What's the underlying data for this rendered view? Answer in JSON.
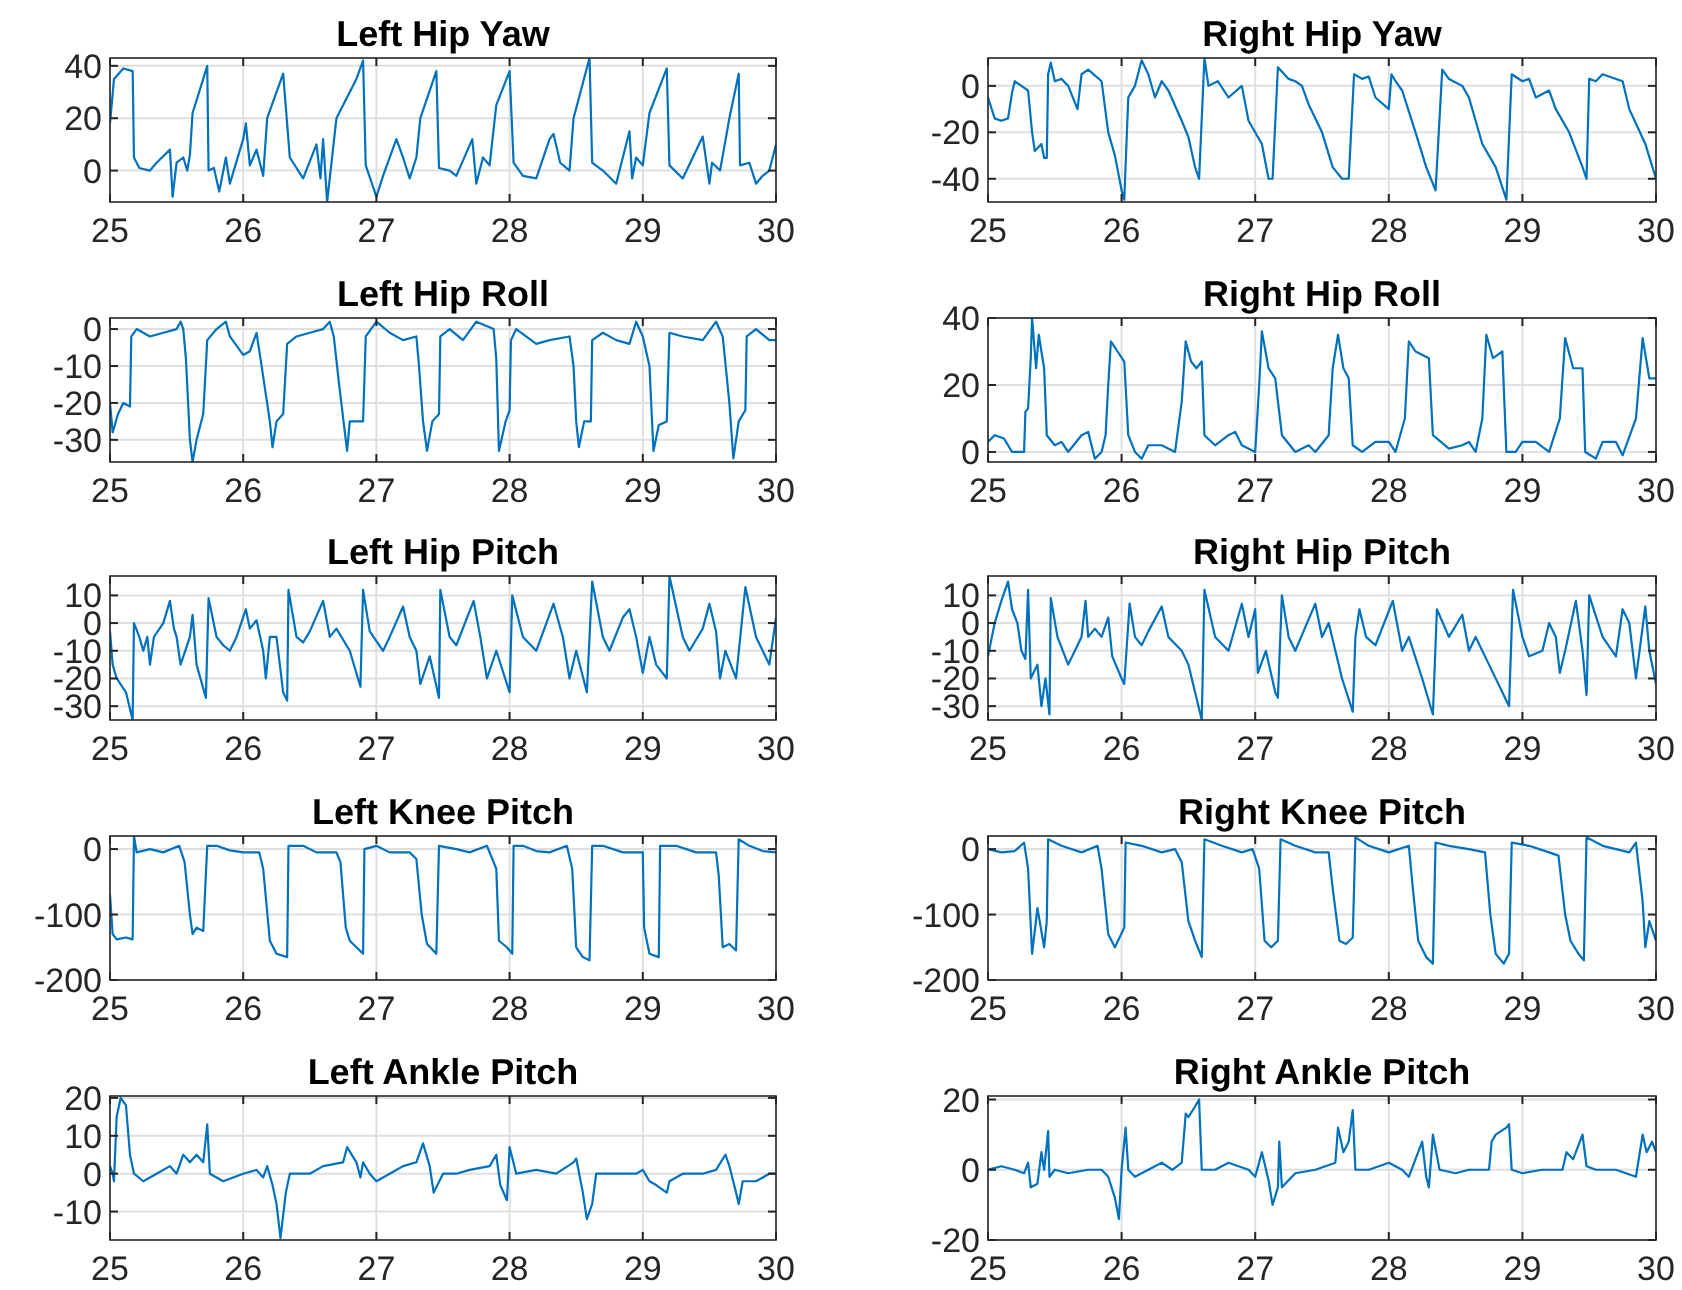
{
  "chart_data": [
    {
      "type": "line",
      "title": "Left Hip Yaw",
      "color": "#0072bd",
      "xlim": [
        25,
        30
      ],
      "xticks": [
        25,
        26,
        27,
        28,
        29,
        30
      ],
      "ylim": [
        -12,
        43
      ],
      "yticks": [
        0,
        20,
        40
      ],
      "grid": true,
      "x": [
        25,
        25.03,
        25.1,
        25.17,
        25.18,
        25.22,
        25.3,
        25.35,
        25.45,
        25.47,
        25.5,
        25.55,
        25.58,
        25.6,
        25.62,
        25.7,
        25.73,
        25.74,
        25.78,
        25.82,
        25.87,
        25.9,
        26.0,
        26.02,
        26.05,
        26.1,
        26.15,
        26.18,
        26.3,
        26.35,
        26.45,
        26.55,
        26.58,
        26.6,
        26.63,
        26.7,
        26.85,
        26.9,
        26.92,
        27.0,
        27.05,
        27.15,
        27.2,
        27.25,
        27.3,
        27.33,
        27.45,
        27.47,
        27.55,
        27.6,
        27.72,
        27.75,
        27.8,
        27.85,
        27.9,
        28.0,
        28.03,
        28.1,
        28.2,
        28.3,
        28.33,
        28.38,
        28.45,
        28.48,
        28.6,
        28.62,
        28.7,
        28.8,
        28.9,
        28.92,
        28.95,
        29.0,
        29.05,
        29.18,
        29.2,
        29.3,
        29.45,
        29.5,
        29.52,
        29.58,
        29.65,
        29.72,
        29.73,
        29.8,
        29.85,
        29.9,
        29.95,
        30
      ],
      "values": [
        18,
        35,
        39,
        38,
        5,
        1,
        0,
        3,
        8,
        -10,
        3,
        5,
        0,
        6,
        22,
        35,
        40,
        0,
        1,
        -8,
        5,
        -5,
        12,
        18,
        2,
        8,
        -2,
        20,
        37,
        5,
        -3,
        10,
        -3,
        12,
        -12,
        20,
        35,
        42,
        2,
        -10,
        -2,
        12,
        5,
        -3,
        5,
        20,
        38,
        1,
        0,
        -2,
        12,
        -5,
        5,
        2,
        25,
        38,
        3,
        -2,
        -3,
        12,
        14,
        3,
        0,
        20,
        43,
        3,
        0,
        -5,
        15,
        -3,
        5,
        2,
        22,
        39,
        2,
        -3,
        13,
        -5,
        3,
        0,
        20,
        37,
        2,
        3,
        -5,
        -2,
        0,
        10
      ]
    },
    {
      "type": "line",
      "title": "Right Hip Yaw",
      "color": "#0072bd",
      "xlim": [
        25,
        30
      ],
      "xticks": [
        25,
        26,
        27,
        28,
        29,
        30
      ],
      "ylim": [
        -50,
        12
      ],
      "yticks": [
        -40,
        -20,
        0
      ],
      "grid": true,
      "x": [
        25,
        25.05,
        25.1,
        25.15,
        25.18,
        25.2,
        25.25,
        25.3,
        25.33,
        25.35,
        25.4,
        25.42,
        25.44,
        25.45,
        25.47,
        25.5,
        25.55,
        25.6,
        25.67,
        25.7,
        25.75,
        25.85,
        25.9,
        25.95,
        26.0,
        26.02,
        26.05,
        26.1,
        26.15,
        26.2,
        26.25,
        26.3,
        26.35,
        26.45,
        26.5,
        26.55,
        26.58,
        26.62,
        26.65,
        26.72,
        26.8,
        26.9,
        26.95,
        27.05,
        27.1,
        27.13,
        27.17,
        27.25,
        27.3,
        27.35,
        27.4,
        27.5,
        27.58,
        27.65,
        27.7,
        27.74,
        27.8,
        27.85,
        27.9,
        28.0,
        28.02,
        28.05,
        28.1,
        28.2,
        28.28,
        28.35,
        28.4,
        28.45,
        28.55,
        28.6,
        28.7,
        28.8,
        28.88,
        28.92,
        29.0,
        29.05,
        29.1,
        29.2,
        29.25,
        29.35,
        29.45,
        29.48,
        29.5,
        29.55,
        29.6,
        29.75,
        29.8,
        29.88,
        29.92,
        30
      ],
      "values": [
        -5,
        -14,
        -15,
        -14,
        -3,
        2,
        0,
        -2,
        -20,
        -28,
        -25,
        -31,
        -31,
        5,
        10,
        2,
        3,
        0,
        -10,
        5,
        7,
        2,
        -20,
        -30,
        -45,
        -49,
        -5,
        0,
        11,
        5,
        -5,
        2,
        -2,
        -15,
        -22,
        -35,
        -40,
        12,
        0,
        2,
        -5,
        0,
        -15,
        -25,
        -40,
        -40,
        8,
        3,
        2,
        0,
        -8,
        -20,
        -35,
        -40,
        -40,
        5,
        3,
        4,
        -5,
        -10,
        5,
        2,
        -2,
        -20,
        -35,
        -45,
        7,
        3,
        0,
        -5,
        -25,
        -35,
        -49,
        5,
        2,
        3,
        -5,
        -2,
        -10,
        -20,
        -35,
        -40,
        3,
        2,
        5,
        2,
        -10,
        -20,
        -25,
        -40
      ]
    },
    {
      "type": "line",
      "title": "Left Hip Roll",
      "color": "#0072bd",
      "xlim": [
        25,
        30
      ],
      "xticks": [
        25,
        26,
        27,
        28,
        29,
        30
      ],
      "ylim": [
        -36,
        3
      ],
      "yticks": [
        -30,
        -20,
        -10,
        0
      ],
      "grid": true,
      "x": [
        25,
        25.02,
        25.06,
        25.1,
        25.15,
        25.16,
        25.2,
        25.3,
        25.4,
        25.5,
        25.53,
        25.55,
        25.57,
        25.6,
        25.62,
        25.65,
        25.7,
        25.73,
        25.8,
        25.87,
        25.9,
        26.0,
        26.05,
        26.08,
        26.1,
        26.13,
        26.2,
        26.22,
        26.25,
        26.3,
        26.33,
        26.4,
        26.5,
        26.6,
        26.65,
        26.68,
        26.72,
        26.78,
        26.8,
        26.9,
        26.92,
        27.0,
        27.1,
        27.2,
        27.3,
        27.32,
        27.35,
        27.38,
        27.42,
        27.47,
        27.48,
        27.55,
        27.65,
        27.75,
        27.88,
        27.9,
        27.92,
        27.97,
        28.0,
        28.01,
        28.05,
        28.2,
        28.3,
        28.45,
        28.48,
        28.5,
        28.52,
        28.56,
        28.61,
        28.62,
        28.7,
        28.8,
        28.9,
        28.95,
        29.0,
        29.05,
        29.08,
        29.12,
        29.18,
        29.2,
        29.3,
        29.45,
        29.55,
        29.6,
        29.65,
        29.68,
        29.72,
        29.77,
        29.78,
        29.85,
        29.95,
        30
      ],
      "values": [
        -20,
        -28,
        -23,
        -20,
        -21,
        -2,
        0,
        -2,
        -1,
        0,
        2,
        0,
        -8,
        -30,
        -36,
        -30,
        -23,
        -3,
        0,
        2,
        -2,
        -7,
        -6,
        -3,
        -1,
        -8,
        -25,
        -32,
        -25,
        -23,
        -4,
        -2,
        -1,
        0,
        2,
        -2,
        -15,
        -33,
        -25,
        -25,
        -2,
        2,
        -1,
        -3,
        -2,
        -10,
        -25,
        -33,
        -25,
        -23,
        -2,
        0,
        -3,
        2,
        0,
        -8,
        -33,
        -25,
        -22,
        -3,
        0,
        -4,
        -3,
        -2,
        -10,
        -25,
        -32,
        -25,
        -25,
        -3,
        -1,
        -3,
        -4,
        2,
        -2,
        -10,
        -33,
        -26,
        -25,
        -1,
        -2,
        -3,
        2,
        -2,
        -20,
        -35,
        -25,
        -22,
        -2,
        0,
        -3,
        -3
      ]
    },
    {
      "type": "line",
      "title": "Right Hip Roll",
      "color": "#0072bd",
      "xlim": [
        25,
        30
      ],
      "xticks": [
        25,
        26,
        27,
        28,
        29,
        30
      ],
      "ylim": [
        -3,
        40
      ],
      "yticks": [
        0,
        20,
        40
      ],
      "grid": true,
      "x": [
        25,
        25.05,
        25.12,
        25.18,
        25.27,
        25.28,
        25.3,
        25.32,
        25.33,
        25.36,
        25.38,
        25.42,
        25.44,
        25.5,
        25.55,
        25.6,
        25.7,
        25.75,
        25.8,
        25.85,
        25.88,
        25.9,
        25.92,
        25.97,
        26.02,
        26.05,
        26.1,
        26.15,
        26.2,
        26.3,
        26.4,
        26.45,
        26.48,
        26.52,
        26.56,
        26.6,
        26.62,
        26.7,
        26.8,
        26.85,
        26.9,
        27.0,
        27.03,
        27.05,
        27.1,
        27.15,
        27.2,
        27.3,
        27.4,
        27.45,
        27.55,
        27.58,
        27.62,
        27.66,
        27.7,
        27.73,
        27.8,
        27.9,
        28.0,
        28.05,
        28.12,
        28.15,
        28.2,
        28.3,
        28.33,
        28.45,
        28.55,
        28.6,
        28.65,
        28.7,
        28.73,
        28.78,
        28.85,
        28.88,
        28.95,
        29.0,
        29.1,
        29.2,
        29.28,
        29.32,
        29.38,
        29.45,
        29.47,
        29.55,
        29.6,
        29.7,
        29.75,
        29.85,
        29.9,
        29.95,
        30
      ],
      "values": [
        3,
        5,
        4,
        0,
        0,
        12,
        13,
        28,
        40,
        25,
        35,
        25,
        5,
        2,
        3,
        0,
        5,
        6,
        -2,
        0,
        5,
        20,
        33,
        30,
        27,
        5,
        0,
        -2,
        2,
        2,
        0,
        15,
        33,
        27,
        25,
        27,
        5,
        2,
        5,
        6,
        2,
        0,
        20,
        36,
        25,
        22,
        5,
        0,
        2,
        0,
        5,
        25,
        35,
        25,
        22,
        2,
        0,
        3,
        3,
        0,
        10,
        33,
        30,
        28,
        5,
        1,
        2,
        3,
        0,
        10,
        35,
        28,
        30,
        0,
        0,
        3,
        3,
        0,
        10,
        34,
        25,
        25,
        0,
        -2,
        3,
        3,
        -1,
        10,
        34,
        22,
        22
      ]
    },
    {
      "type": "line",
      "title": "Left Hip Pitch",
      "color": "#0072bd",
      "xlim": [
        25,
        30
      ],
      "xticks": [
        25,
        26,
        27,
        28,
        29,
        30
      ],
      "ylim": [
        -35,
        17
      ],
      "yticks": [
        -30,
        -20,
        -10,
        0,
        10
      ],
      "grid": true,
      "x": [
        25,
        25.02,
        25.05,
        25.12,
        25.17,
        25.18,
        25.22,
        25.25,
        25.28,
        25.3,
        25.33,
        25.4,
        25.45,
        25.48,
        25.5,
        25.53,
        25.6,
        25.62,
        25.65,
        25.72,
        25.74,
        25.8,
        25.85,
        25.9,
        25.95,
        26.02,
        26.05,
        26.1,
        26.15,
        26.17,
        26.2,
        26.25,
        26.3,
        26.33,
        26.34,
        26.4,
        26.45,
        26.5,
        26.6,
        26.65,
        26.7,
        26.8,
        26.88,
        26.9,
        26.95,
        27.05,
        27.1,
        27.2,
        27.25,
        27.3,
        27.33,
        27.4,
        27.47,
        27.48,
        27.55,
        27.6,
        27.73,
        27.78,
        27.83,
        27.9,
        28.0,
        28.02,
        28.1,
        28.2,
        28.33,
        28.4,
        28.45,
        28.5,
        28.58,
        28.62,
        28.7,
        28.75,
        28.85,
        28.9,
        28.95,
        29.0,
        29.05,
        29.1,
        29.18,
        29.2,
        29.3,
        29.35,
        29.45,
        29.5,
        29.55,
        29.58,
        29.62,
        29.7,
        29.77,
        29.85,
        29.9,
        29.95,
        30
      ],
      "values": [
        -3,
        -15,
        -20,
        -25,
        -35,
        0,
        -5,
        -10,
        -5,
        -15,
        -5,
        0,
        8,
        -2,
        -5,
        -15,
        -5,
        3,
        -15,
        -27,
        9,
        -5,
        -8,
        -10,
        -5,
        5,
        -2,
        1,
        -10,
        -20,
        -5,
        -5,
        -25,
        -28,
        12,
        -5,
        -7,
        -3,
        8,
        -5,
        -2,
        -10,
        -23,
        12,
        -3,
        -10,
        -5,
        6,
        -5,
        -10,
        -22,
        -12,
        -27,
        12,
        -5,
        -8,
        8,
        -5,
        -20,
        -10,
        -25,
        10,
        -5,
        -10,
        7,
        -5,
        -20,
        -10,
        -25,
        15,
        -5,
        -10,
        2,
        5,
        -5,
        -18,
        -5,
        -15,
        -20,
        17,
        -5,
        -10,
        -2,
        7,
        -3,
        -20,
        -10,
        -20,
        13,
        -5,
        -10,
        -15,
        2
      ]
    },
    {
      "type": "line",
      "title": "Right Hip Pitch",
      "color": "#0072bd",
      "xlim": [
        25,
        30
      ],
      "xticks": [
        25,
        26,
        27,
        28,
        29,
        30
      ],
      "ylim": [
        -35,
        17
      ],
      "yticks": [
        -30,
        -20,
        -10,
        0,
        10
      ],
      "grid": true,
      "x": [
        25,
        25.05,
        25.1,
        25.15,
        25.18,
        25.22,
        25.25,
        25.28,
        25.3,
        25.32,
        25.37,
        25.4,
        25.43,
        25.46,
        25.47,
        25.52,
        25.6,
        25.7,
        25.73,
        25.75,
        25.8,
        25.85,
        25.9,
        25.93,
        26.0,
        26.02,
        26.06,
        26.1,
        26.15,
        26.2,
        26.3,
        26.35,
        26.45,
        26.5,
        26.55,
        26.6,
        26.62,
        26.7,
        26.8,
        26.9,
        26.95,
        27.0,
        27.02,
        27.08,
        27.15,
        27.17,
        27.2,
        27.25,
        27.3,
        27.45,
        27.5,
        27.55,
        27.65,
        27.73,
        27.75,
        27.78,
        27.83,
        27.9,
        28.03,
        28.1,
        28.15,
        28.25,
        28.33,
        28.36,
        28.45,
        28.55,
        28.6,
        28.65,
        28.75,
        28.85,
        28.9,
        28.93,
        29.0,
        29.05,
        29.15,
        29.2,
        29.25,
        29.28,
        29.32,
        29.4,
        29.45,
        29.48,
        29.5,
        29.6,
        29.7,
        29.75,
        29.8,
        29.85,
        29.92,
        29.95,
        30
      ],
      "values": [
        -12,
        0,
        8,
        15,
        5,
        0,
        -10,
        -13,
        12,
        -20,
        -15,
        -30,
        -20,
        -33,
        9,
        -5,
        -15,
        -5,
        8,
        -5,
        -2,
        -5,
        2,
        -12,
        -20,
        -22,
        7,
        -5,
        -8,
        -3,
        6,
        -5,
        -10,
        -15,
        -25,
        -35,
        12,
        -5,
        -10,
        7,
        -5,
        5,
        -18,
        -10,
        -25,
        -27,
        10,
        -5,
        -10,
        7,
        -5,
        0,
        -20,
        -32,
        -5,
        5,
        -5,
        -8,
        8,
        -10,
        -5,
        -20,
        -33,
        5,
        -5,
        3,
        -10,
        -5,
        -15,
        -25,
        -30,
        12,
        -5,
        -12,
        -10,
        0,
        -5,
        -18,
        -10,
        8,
        -10,
        -26,
        10,
        -5,
        -12,
        5,
        0,
        -20,
        6,
        -10,
        -22
      ]
    },
    {
      "type": "line",
      "title": "Left Knee Pitch",
      "color": "#0072bd",
      "xlim": [
        25,
        30
      ],
      "xticks": [
        25,
        26,
        27,
        28,
        29,
        30
      ],
      "ylim": [
        -200,
        20
      ],
      "yticks": [
        -200,
        -100,
        0
      ],
      "grid": true,
      "x": [
        25,
        25.02,
        25.05,
        25.12,
        25.17,
        25.18,
        25.2,
        25.3,
        25.4,
        25.52,
        25.56,
        25.6,
        25.62,
        25.65,
        25.7,
        25.73,
        25.8,
        25.9,
        26.0,
        26.08,
        26.12,
        26.15,
        26.2,
        26.25,
        26.33,
        26.34,
        26.45,
        26.55,
        26.7,
        26.73,
        26.77,
        26.8,
        26.9,
        26.91,
        27.0,
        27.1,
        27.25,
        27.3,
        27.34,
        27.38,
        27.45,
        27.47,
        27.6,
        27.7,
        27.83,
        27.9,
        27.92,
        27.98,
        28.02,
        28.03,
        28.1,
        28.2,
        28.3,
        28.43,
        28.47,
        28.5,
        28.55,
        28.6,
        28.62,
        28.7,
        28.85,
        29.0,
        29.01,
        29.05,
        29.12,
        29.13,
        29.25,
        29.4,
        29.55,
        29.57,
        29.6,
        29.65,
        29.7,
        29.72,
        29.8,
        29.9,
        30
      ],
      "values": [
        -70,
        -130,
        -138,
        -135,
        -138,
        20,
        -5,
        0,
        -5,
        5,
        -20,
        -100,
        -130,
        -120,
        -125,
        5,
        5,
        -2,
        -5,
        -5,
        -5,
        -30,
        -140,
        -160,
        -165,
        5,
        5,
        -5,
        -5,
        -20,
        -120,
        -140,
        -160,
        0,
        5,
        -5,
        -5,
        -15,
        -100,
        -145,
        -160,
        5,
        0,
        -5,
        5,
        -30,
        -140,
        -150,
        -160,
        5,
        5,
        -3,
        -5,
        5,
        -30,
        -150,
        -165,
        -170,
        5,
        5,
        -5,
        -5,
        -120,
        -160,
        -165,
        5,
        5,
        -5,
        -5,
        -40,
        -150,
        -145,
        -155,
        15,
        5,
        -3,
        -5
      ]
    },
    {
      "type": "line",
      "title": "Right Knee Pitch",
      "color": "#0072bd",
      "xlim": [
        25,
        30
      ],
      "xticks": [
        25,
        26,
        27,
        28,
        29,
        30
      ],
      "ylim": [
        -200,
        20
      ],
      "yticks": [
        -200,
        -100,
        0
      ],
      "grid": true,
      "x": [
        25,
        25.1,
        25.2,
        25.27,
        25.3,
        25.33,
        25.37,
        25.42,
        25.44,
        25.45,
        25.55,
        25.7,
        25.82,
        25.85,
        25.9,
        25.95,
        26.02,
        26.03,
        26.15,
        26.3,
        26.4,
        26.45,
        26.5,
        26.55,
        26.6,
        26.62,
        26.75,
        26.9,
        26.98,
        27.03,
        27.07,
        27.12,
        27.17,
        27.19,
        27.3,
        27.45,
        27.55,
        27.58,
        27.63,
        27.68,
        27.73,
        27.75,
        27.85,
        28.0,
        28.15,
        28.18,
        28.22,
        28.28,
        28.33,
        28.35,
        28.45,
        28.6,
        28.72,
        28.76,
        28.8,
        28.86,
        28.9,
        28.92,
        29.05,
        29.2,
        29.27,
        29.32,
        29.36,
        29.42,
        29.46,
        29.48,
        29.6,
        29.8,
        29.85,
        29.9,
        29.92,
        29.95,
        30
      ],
      "values": [
        0,
        -5,
        -3,
        10,
        -30,
        -160,
        -90,
        -150,
        -110,
        15,
        5,
        -5,
        5,
        -30,
        -130,
        -150,
        -120,
        10,
        5,
        -5,
        0,
        -20,
        -110,
        -140,
        -165,
        15,
        5,
        -5,
        0,
        -30,
        -140,
        -150,
        -140,
        15,
        5,
        -5,
        -5,
        -60,
        -140,
        -145,
        -135,
        18,
        5,
        -5,
        5,
        -60,
        -140,
        -165,
        -175,
        10,
        5,
        0,
        -5,
        -100,
        -160,
        -175,
        -160,
        10,
        5,
        -5,
        -10,
        -100,
        -140,
        -160,
        -170,
        18,
        5,
        -5,
        10,
        -80,
        -150,
        -110,
        -140
      ]
    },
    {
      "type": "line",
      "title": "Left Ankle Pitch",
      "color": "#0072bd",
      "xlim": [
        25,
        30
      ],
      "xticks": [
        25,
        26,
        27,
        28,
        29,
        30
      ],
      "ylim": [
        -17.5,
        20.5
      ],
      "yticks": [
        -10,
        0,
        10,
        20
      ],
      "grid": true,
      "x": [
        25,
        25.02,
        25.03,
        25.05,
        25.08,
        25.12,
        25.15,
        25.18,
        25.25,
        25.35,
        25.45,
        25.5,
        25.55,
        25.6,
        25.65,
        25.7,
        25.73,
        25.75,
        25.85,
        26.0,
        26.1,
        26.15,
        26.18,
        26.22,
        26.25,
        26.28,
        26.32,
        26.35,
        26.5,
        26.6,
        26.75,
        26.78,
        26.85,
        26.88,
        26.9,
        26.95,
        27.0,
        27.1,
        27.2,
        27.3,
        27.35,
        27.4,
        27.43,
        27.5,
        27.6,
        27.7,
        27.85,
        27.9,
        27.93,
        27.98,
        28.0,
        28.05,
        28.2,
        28.35,
        28.48,
        28.5,
        28.55,
        28.58,
        28.62,
        28.65,
        28.8,
        28.95,
        29.0,
        29.05,
        29.1,
        29.18,
        29.2,
        29.3,
        29.45,
        29.55,
        29.62,
        29.65,
        29.7,
        29.72,
        29.75,
        29.85,
        29.95,
        30
      ],
      "values": [
        2,
        0,
        -2,
        15,
        20,
        18,
        5,
        0,
        -2,
        0,
        2,
        0,
        5,
        3,
        5,
        3,
        13,
        0,
        -2,
        0,
        1,
        -1,
        2,
        -3,
        -8,
        -17,
        -5,
        0,
        0,
        2,
        3,
        7,
        3,
        -1,
        3,
        0,
        -2,
        0,
        2,
        3,
        8,
        2,
        -5,
        0,
        0,
        1,
        2,
        5,
        -3,
        -7,
        7,
        0,
        1,
        0,
        3,
        4,
        -5,
        -12,
        -8,
        0,
        0,
        0,
        1,
        -2,
        -3,
        -5,
        -2,
        0,
        0,
        1,
        5,
        2,
        -5,
        -8,
        -2,
        -2,
        0,
        0
      ]
    },
    {
      "type": "line",
      "title": "Right Ankle Pitch",
      "color": "#0072bd",
      "xlim": [
        25,
        30
      ],
      "xticks": [
        25,
        26,
        27,
        28,
        29,
        30
      ],
      "ylim": [
        -20,
        21
      ],
      "yticks": [
        -20,
        0,
        20
      ],
      "grid": true,
      "x": [
        25,
        25.1,
        25.2,
        25.27,
        25.3,
        25.32,
        25.37,
        25.4,
        25.42,
        25.45,
        25.46,
        25.5,
        25.6,
        25.75,
        25.85,
        25.9,
        25.95,
        25.98,
        26.0,
        26.03,
        26.05,
        26.1,
        26.2,
        26.3,
        26.38,
        26.45,
        26.48,
        26.5,
        26.55,
        26.58,
        26.6,
        26.7,
        26.8,
        26.95,
        27.0,
        27.05,
        27.1,
        27.13,
        27.17,
        27.18,
        27.2,
        27.3,
        27.45,
        27.6,
        27.62,
        27.66,
        27.7,
        27.73,
        27.75,
        27.85,
        28.0,
        28.1,
        28.15,
        28.2,
        28.25,
        28.28,
        28.3,
        28.33,
        28.38,
        28.5,
        28.6,
        28.75,
        28.77,
        28.8,
        28.88,
        28.9,
        28.92,
        29.0,
        29.15,
        29.3,
        29.33,
        29.38,
        29.45,
        29.48,
        29.55,
        29.7,
        29.85,
        29.9,
        29.93,
        29.97,
        30
      ],
      "values": [
        0,
        1,
        0,
        -1,
        2,
        -5,
        -4,
        5,
        0,
        11,
        -2,
        0,
        -1,
        0,
        0,
        -2,
        -8,
        -14,
        0,
        12,
        0,
        -2,
        0,
        2,
        0,
        2,
        16,
        15,
        18,
        20,
        0,
        0,
        2,
        0,
        -2,
        5,
        -3,
        -10,
        -5,
        8,
        -5,
        -1,
        0,
        2,
        12,
        5,
        8,
        17,
        0,
        0,
        2,
        0,
        -2,
        3,
        8,
        -2,
        -5,
        10,
        0,
        -1,
        0,
        0,
        8,
        10,
        12,
        13,
        0,
        -1,
        0,
        0,
        5,
        3,
        10,
        1,
        0,
        0,
        -2,
        10,
        5,
        8,
        5
      ]
    }
  ]
}
